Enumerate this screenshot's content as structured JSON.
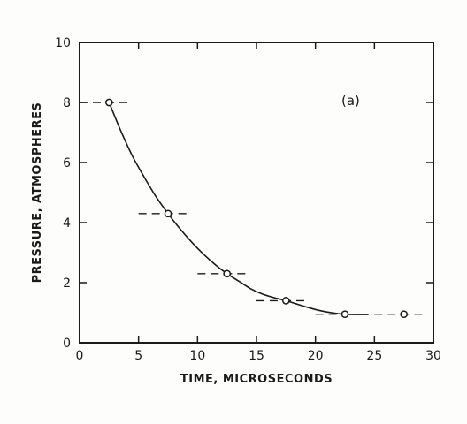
{
  "chart_data": {
    "type": "scatter",
    "title": "",
    "xlabel": "TIME, MICROSECONDS",
    "ylabel": "PRESSURE, ATMOSPHERES",
    "xlim": [
      0,
      30
    ],
    "ylim": [
      0,
      10
    ],
    "x_ticks": [
      0,
      5,
      10,
      15,
      20,
      25,
      30
    ],
    "y_ticks": [
      0,
      2,
      4,
      6,
      8,
      10
    ],
    "grid": false,
    "annotation": "(a)",
    "points": [
      {
        "x": 2.5,
        "y": 8.0,
        "x_range": [
          0,
          4.5
        ]
      },
      {
        "x": 7.5,
        "y": 4.3,
        "x_range": [
          5,
          9.5
        ]
      },
      {
        "x": 12.5,
        "y": 2.3,
        "x_range": [
          10,
          14.5
        ]
      },
      {
        "x": 17.5,
        "y": 1.4,
        "x_range": [
          15,
          19.5
        ]
      },
      {
        "x": 22.5,
        "y": 0.95,
        "x_range": [
          20,
          24.5
        ]
      },
      {
        "x": 27.5,
        "y": 0.95,
        "x_range": [
          25,
          29.5
        ]
      }
    ],
    "curve": [
      [
        2.5,
        8.0
      ],
      [
        3.5,
        7.05
      ],
      [
        4.5,
        6.2
      ],
      [
        5.5,
        5.5
      ],
      [
        6.5,
        4.85
      ],
      [
        7.5,
        4.3
      ],
      [
        8.5,
        3.8
      ],
      [
        9.5,
        3.35
      ],
      [
        10.5,
        2.95
      ],
      [
        11.5,
        2.6
      ],
      [
        12.5,
        2.3
      ],
      [
        13.5,
        2.05
      ],
      [
        14.5,
        1.8
      ],
      [
        15.5,
        1.62
      ],
      [
        16.5,
        1.5
      ],
      [
        17.5,
        1.4
      ],
      [
        18.5,
        1.28
      ],
      [
        19.5,
        1.16
      ],
      [
        20.5,
        1.06
      ],
      [
        21.5,
        0.99
      ],
      [
        22.5,
        0.95
      ],
      [
        23.5,
        0.94
      ],
      [
        24.5,
        0.94
      ]
    ]
  }
}
